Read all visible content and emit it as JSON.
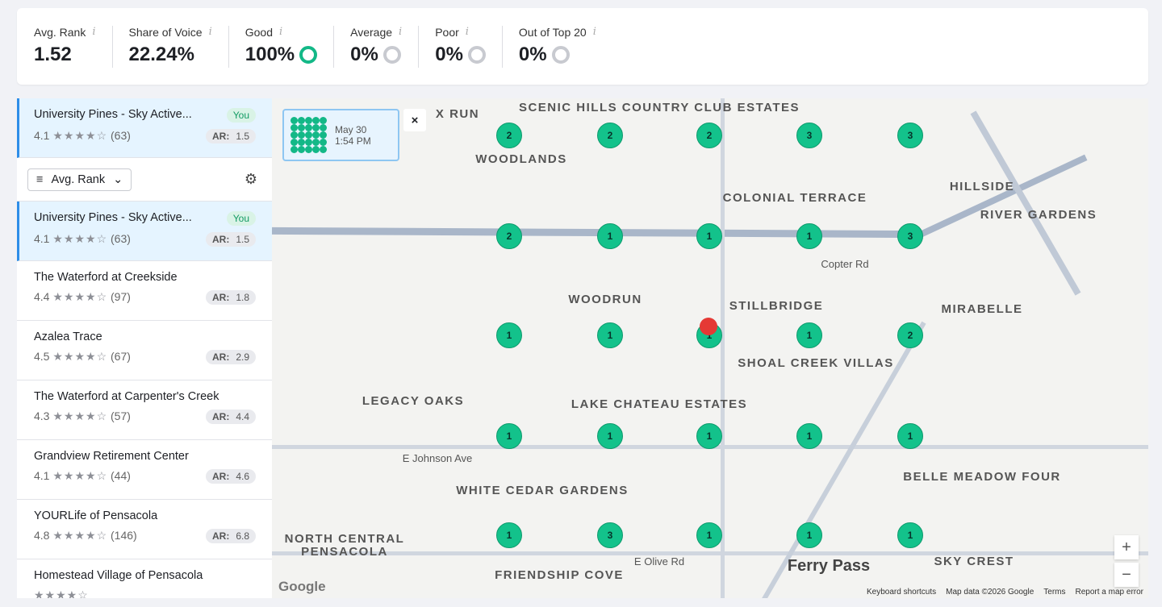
{
  "stats": [
    {
      "label": "Avg. Rank",
      "value": "1.52",
      "ring": null
    },
    {
      "label": "Share of Voice",
      "value": "22.24%",
      "ring": null
    },
    {
      "label": "Good",
      "value": "100%",
      "ring": "good"
    },
    {
      "label": "Average",
      "value": "0%",
      "ring": "none"
    },
    {
      "label": "Poor",
      "value": "0%",
      "ring": "none"
    },
    {
      "label": "Out of Top 20",
      "value": "0%",
      "ring": "none"
    }
  ],
  "info_glyph": "i",
  "pinned": {
    "name": "University Pines - Sky Active...",
    "badge": "You",
    "rating": "4.1",
    "reviews": "(63)",
    "ar_label": "AR:",
    "ar": "1.5"
  },
  "sort": {
    "label": "Avg. Rank"
  },
  "stars_display": "★★★★☆",
  "listings": [
    {
      "name": "University Pines - Sky Active...",
      "badge": "You",
      "rating": "4.1",
      "reviews": "(63)",
      "ar": "1.5",
      "selected": true
    },
    {
      "name": "The Waterford at Creekside",
      "rating": "4.4",
      "reviews": "(97)",
      "ar": "1.8"
    },
    {
      "name": "Azalea Trace",
      "rating": "4.5",
      "reviews": "(67)",
      "ar": "2.9"
    },
    {
      "name": "The Waterford at Carpenter's Creek",
      "rating": "4.3",
      "reviews": "(57)",
      "ar": "4.4"
    },
    {
      "name": "Grandview Retirement Center",
      "rating": "4.1",
      "reviews": "(44)",
      "ar": "4.6"
    },
    {
      "name": "YOURLife of Pensacola",
      "rating": "4.8",
      "reviews": "(146)",
      "ar": "6.8"
    },
    {
      "name": "Homestead Village of Pensacola",
      "rating": "",
      "reviews": "",
      "ar": ""
    }
  ],
  "map": {
    "popup": {
      "date": "May 30",
      "time": "1:54 PM"
    },
    "close": "×",
    "grid_ranks": [
      [
        2,
        2,
        2,
        3,
        3
      ],
      [
        2,
        1,
        1,
        1,
        3
      ],
      [
        1,
        1,
        1,
        1,
        2
      ],
      [
        1,
        1,
        1,
        1,
        1
      ],
      [
        1,
        3,
        1,
        1,
        1
      ]
    ],
    "labels": [
      "SCENIC HILLS COUNTRY CLUB ESTATES",
      "WOODLANDS",
      "COLONIAL TERRACE",
      "HILLSIDE",
      "RIVER GARDENS",
      "WOODRUN",
      "STILLBRIDGE",
      "MIRABELLE",
      "SHOAL CREEK VILLAS",
      "LEGACY OAKS",
      "LAKE CHATEAU ESTATES",
      "BELLE MEADOW FOUR",
      "WHITE CEDAR GARDENS",
      "FRIENDSHIP COVE",
      "NORTH CENTRAL PENSACOLA",
      "Ferry Pass",
      "SKY CREST",
      "E Johnson Ave",
      "E Olive Rd",
      "Copter Rd",
      "X RUN"
    ],
    "zoom_in": "+",
    "zoom_out": "−",
    "google": "Google",
    "footer": [
      "Keyboard shortcuts",
      "Map data ©2026 Google",
      "Terms",
      "Report a map error"
    ]
  },
  "colors": {
    "good": "#13b887",
    "accent": "#2e8ee8"
  }
}
